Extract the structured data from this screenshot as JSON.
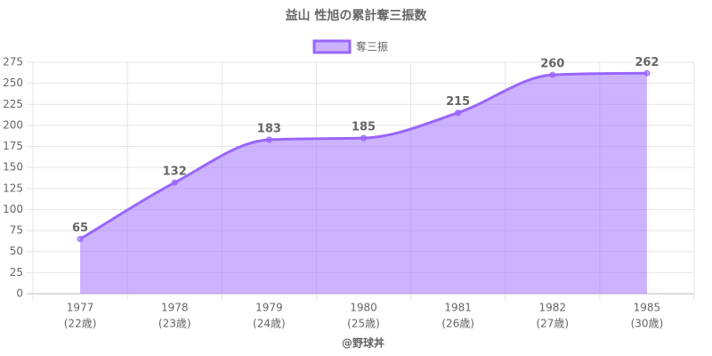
{
  "chart_data": {
    "type": "area",
    "title": "益山 性旭の累計奪三振数",
    "categories": [
      [
        "1977",
        "(22歳)"
      ],
      [
        "1978",
        "(23歳)"
      ],
      [
        "1979",
        "(24歳)"
      ],
      [
        "1980",
        "(25歳)"
      ],
      [
        "1981",
        "(26歳)"
      ],
      [
        "1982",
        "(27歳)"
      ],
      [
        "1985",
        "(30歳)"
      ]
    ],
    "series": [
      {
        "name": "奪三振",
        "color": "#9966ff",
        "values": [
          65,
          132,
          183,
          185,
          215,
          260,
          262
        ]
      }
    ],
    "ylim": [
      0,
      275
    ],
    "yticks": [
      0,
      25,
      50,
      75,
      100,
      125,
      150,
      175,
      200,
      225,
      250,
      275
    ],
    "grid": true,
    "legend": "top",
    "xlabel": "@野球丼"
  }
}
